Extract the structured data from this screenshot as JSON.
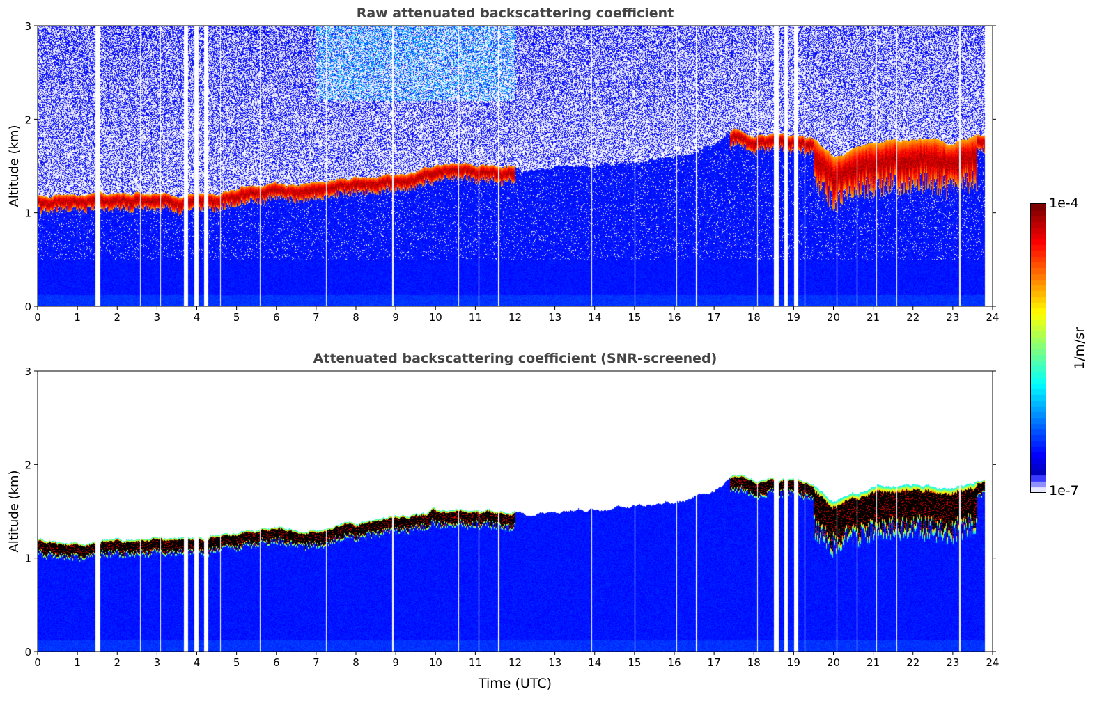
{
  "chart_data": [
    {
      "type": "heatmap",
      "title": "Raw attenuated backscattering coefficient",
      "xlabel": "",
      "ylabel": "Altitude (km)",
      "xlim": [
        0,
        24
      ],
      "ylim": [
        0,
        3
      ],
      "xticks": [
        "0",
        "1",
        "2",
        "3",
        "4",
        "5",
        "6",
        "7",
        "8",
        "9",
        "10",
        "11",
        "12",
        "13",
        "14",
        "15",
        "16",
        "17",
        "18",
        "19",
        "20",
        "21",
        "22",
        "23",
        "24"
      ],
      "yticks": [
        "0",
        "1",
        "2",
        "3"
      ],
      "mode": "raw"
    },
    {
      "type": "heatmap",
      "title": "Attenuated backscattering coefficient (SNR-screened)",
      "xlabel": "Time (UTC)",
      "ylabel": "Altitude (km)",
      "xlim": [
        0,
        24
      ],
      "ylim": [
        0,
        3
      ],
      "xticks": [
        "0",
        "1",
        "2",
        "3",
        "4",
        "5",
        "6",
        "7",
        "8",
        "9",
        "10",
        "11",
        "12",
        "13",
        "14",
        "15",
        "16",
        "17",
        "18",
        "19",
        "20",
        "21",
        "22",
        "23",
        "24"
      ],
      "yticks": [
        "0",
        "1",
        "2",
        "3"
      ],
      "mode": "screened"
    }
  ],
  "shared": {
    "data_end_hour": 23.8,
    "cloud_top_km": {
      "hours": [
        0,
        1,
        1.4,
        2,
        3,
        3.4,
        4.3,
        5,
        6,
        6.6,
        7,
        8,
        9,
        10,
        11,
        12,
        12.3,
        13,
        14,
        15,
        16,
        17,
        17.5,
        18,
        18.5,
        19,
        19.5,
        20,
        21,
        22,
        23,
        23.8
      ],
      "top": [
        1.2,
        1.18,
        1.2,
        1.2,
        1.22,
        1.2,
        1.22,
        1.27,
        1.33,
        1.28,
        1.32,
        1.38,
        1.42,
        1.52,
        1.52,
        1.5,
        1.45,
        1.5,
        1.52,
        1.55,
        1.6,
        1.72,
        1.9,
        1.82,
        1.85,
        1.85,
        1.8,
        1.6,
        1.75,
        1.8,
        1.75,
        1.85
      ],
      "cloud": [
        1,
        1,
        1,
        1,
        1,
        1,
        1,
        1,
        1,
        1,
        1,
        1,
        1,
        1,
        1,
        1,
        0,
        0,
        0,
        0,
        0,
        0,
        1,
        1,
        1,
        1,
        1,
        1,
        1,
        1,
        1,
        1
      ]
    },
    "data_gaps_hours": [
      [
        1.45,
        1.57
      ],
      [
        3.67,
        3.78
      ],
      [
        3.93,
        4.03
      ],
      [
        4.18,
        4.28
      ],
      [
        18.5,
        18.62
      ],
      [
        18.75,
        18.85
      ],
      [
        19.0,
        19.1
      ]
    ],
    "thin_gaps_hours": [
      2.58,
      3.08,
      4.58,
      5.58,
      7.25,
      8.92,
      10.58,
      11.08,
      11.58,
      13.92,
      15.0,
      16.05,
      16.55,
      18.08,
      19.27,
      20.08,
      20.58,
      21.08,
      21.58,
      23.17
    ],
    "colorbar": {
      "min_label": "1e-7",
      "max_label": "1e-4",
      "label": "1/m/sr",
      "scale": "log",
      "colormap": "jet-white"
    }
  }
}
